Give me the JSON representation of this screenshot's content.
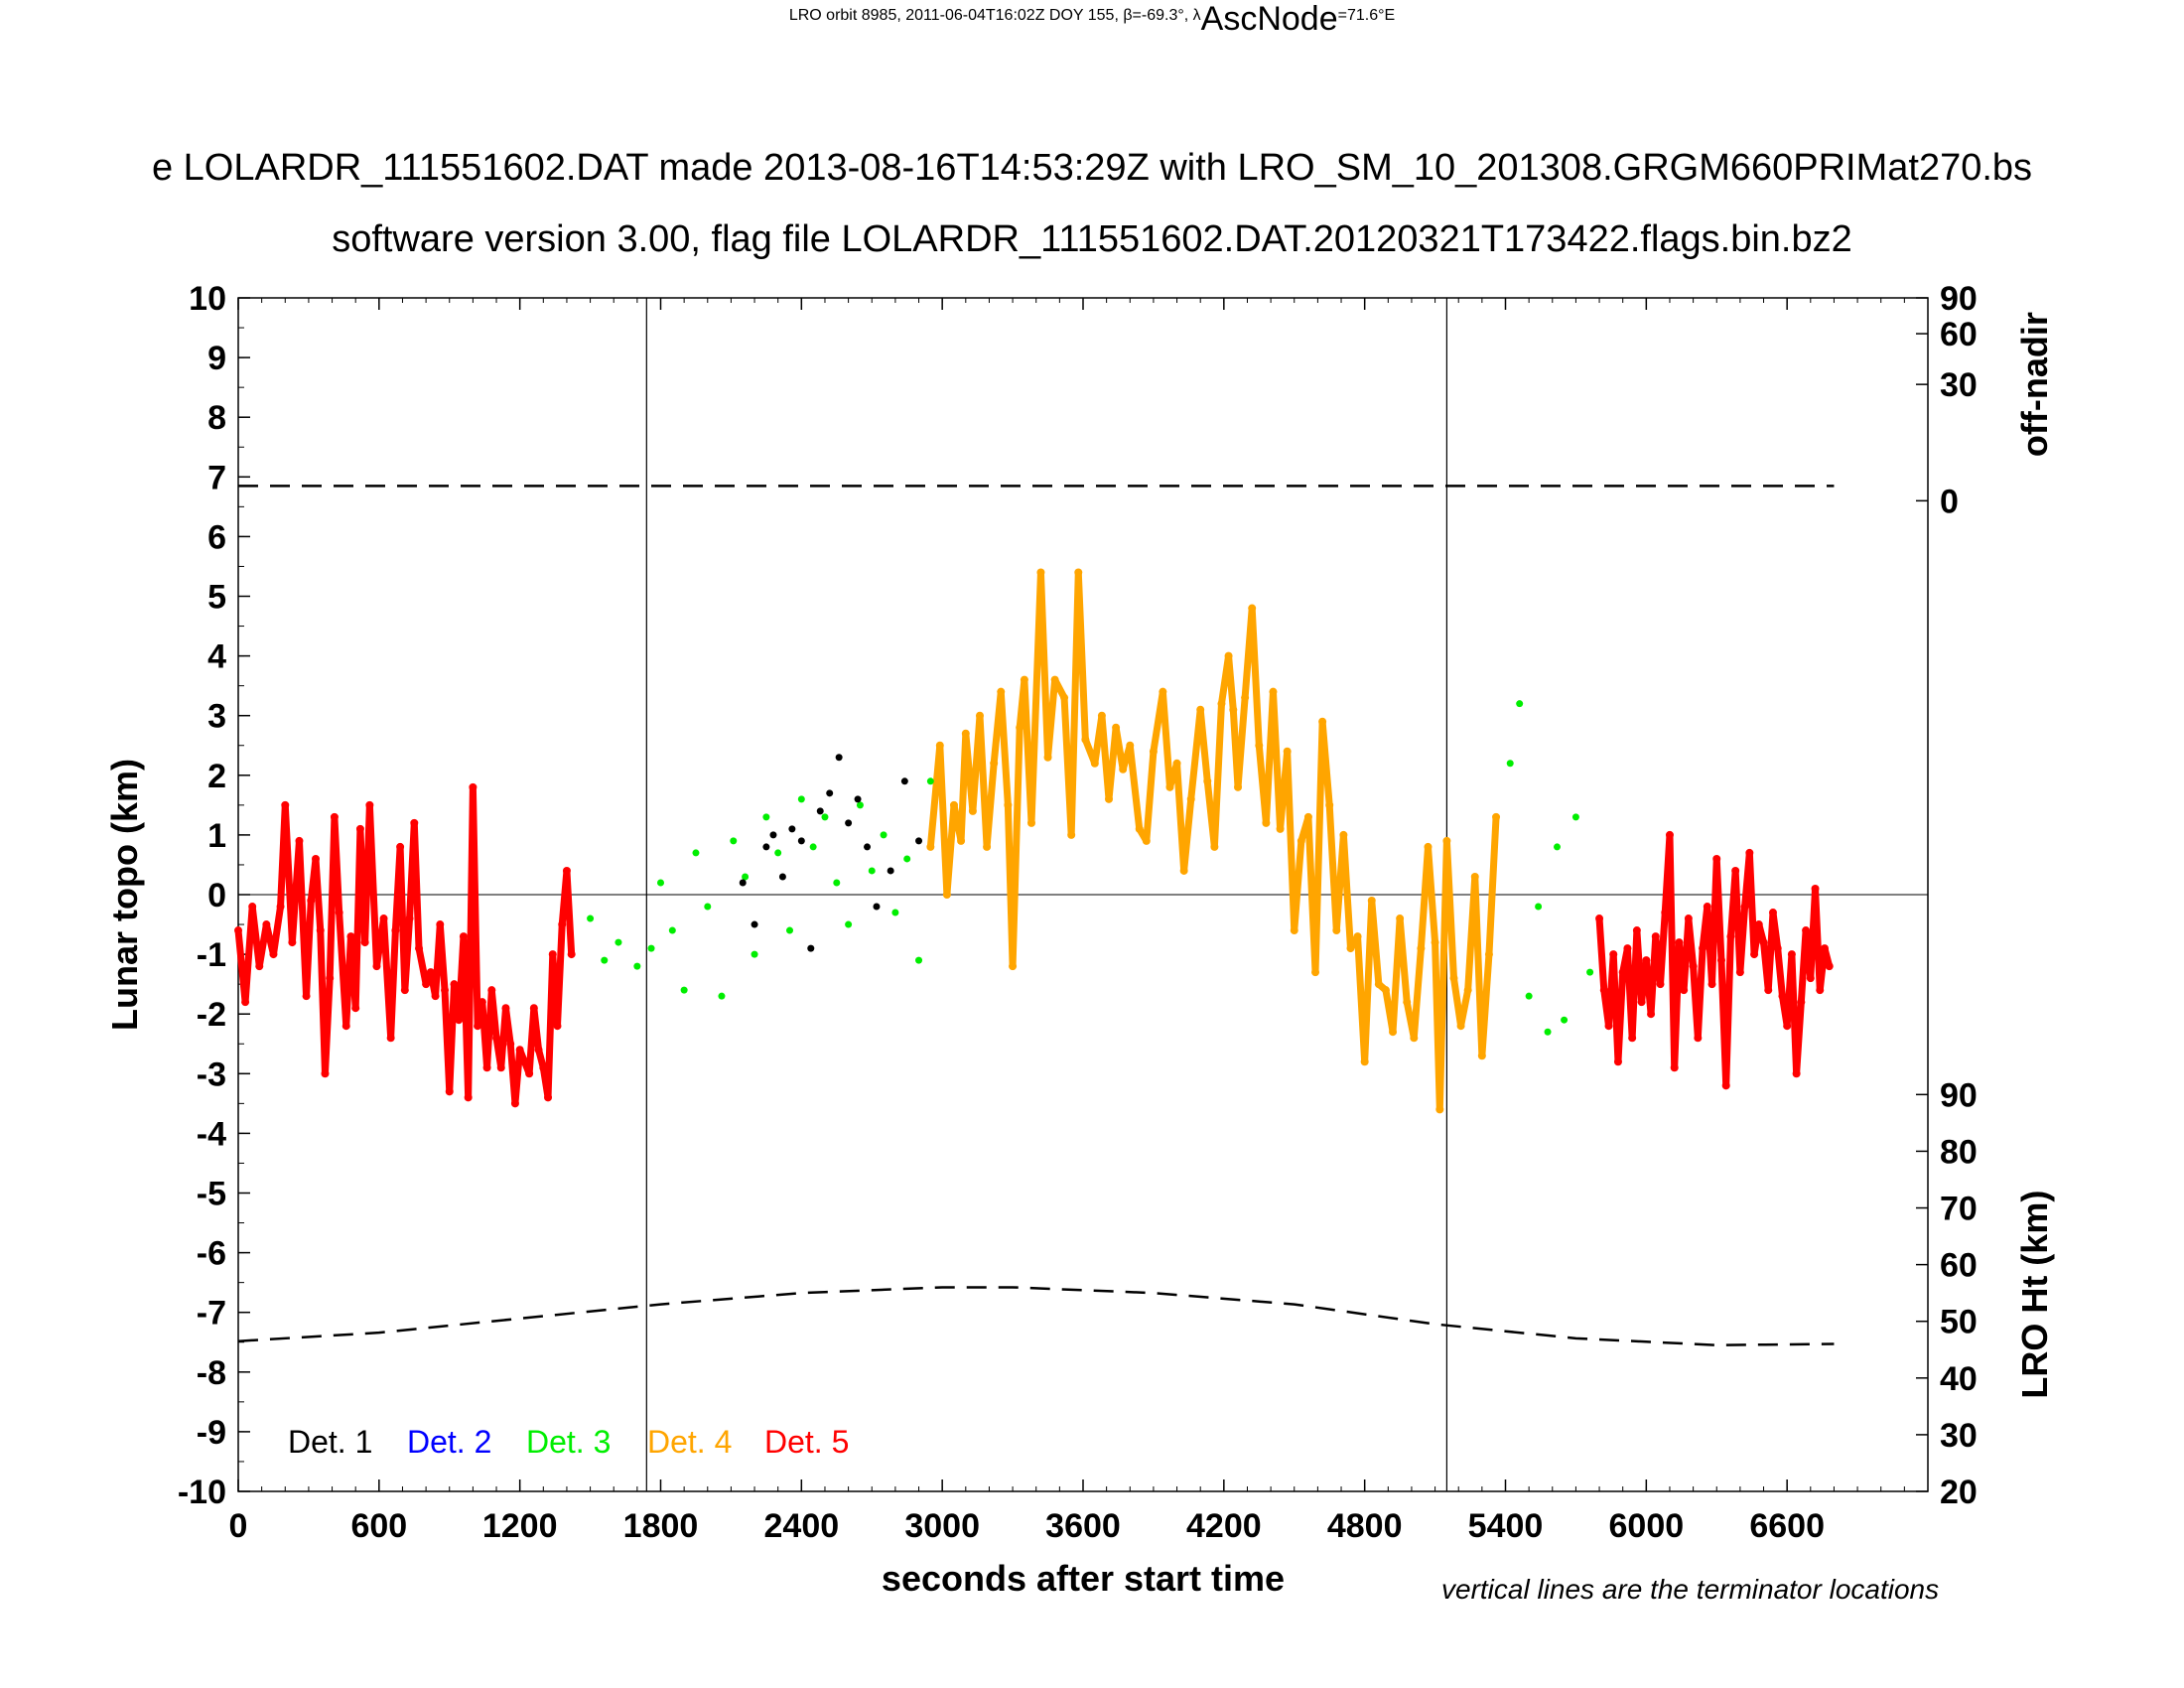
{
  "titles": {
    "line1_pre": "LRO orbit 8985, 2011-06-04T16:02Z DOY 155, β=-69.3°, λ",
    "line1_sub": "AscNode",
    "line1_post": "=71.6°E",
    "line2": "e LOLARDR_111551602.DAT made 2013-08-16T14:53:29Z with LRO_SM_10_201308.GRGM660PRIMat270.bs",
    "line3": "software version 3.00, flag file LOLARDR_111551602.DAT.20120321T173422.flags.bin.bz2"
  },
  "note": "vertical lines are the terminator locations",
  "colors": {
    "det1": "#000000",
    "det2": "#0000ff",
    "det3": "#00ee00",
    "det4": "#ffa500",
    "det5": "#ff0000"
  },
  "chart_data": {
    "type": "scatter",
    "xlabel": "seconds after start time",
    "ylabel": "Lunar topo (km)",
    "y2label_top": "off-nadir",
    "y2label_bottom": "LRO Ht (km)",
    "xlim": [
      0,
      7200
    ],
    "ylim": [
      -10,
      10
    ],
    "x_ticks": [
      "0",
      "600",
      "1200",
      "1800",
      "2400",
      "3000",
      "3600",
      "4200",
      "4800",
      "5400",
      "6000",
      "6600"
    ],
    "y_ticks": [
      "-10",
      "-9",
      "-8",
      "-7",
      "-6",
      "-5",
      "-4",
      "-3",
      "-2",
      "-1",
      "0",
      "1",
      "2",
      "3",
      "4",
      "5",
      "6",
      "7",
      "8",
      "9",
      "10"
    ],
    "offnadir_ticks": [
      [
        "90",
        10
      ],
      [
        "60",
        9.4
      ],
      [
        "30",
        8.55
      ],
      [
        "0",
        6.6
      ]
    ],
    "ht_ticks": [
      [
        "90",
        -3.35
      ],
      [
        "80",
        -4.3
      ],
      [
        "70",
        -5.25
      ],
      [
        "60",
        -6.2
      ],
      [
        "50",
        -7.15
      ],
      [
        "40",
        -8.1
      ],
      [
        "30",
        -9.05
      ],
      [
        "20",
        -10
      ]
    ],
    "terminators": [
      1740,
      5150
    ],
    "offnadir_line": {
      "y": 6.85,
      "x": [
        0,
        6800
      ]
    },
    "lro_height_km": [
      [
        0,
        46.5
      ],
      [
        600,
        48
      ],
      [
        1200,
        50.5
      ],
      [
        1800,
        53
      ],
      [
        2400,
        55
      ],
      [
        3000,
        56
      ],
      [
        3300,
        56
      ],
      [
        3900,
        55
      ],
      [
        4500,
        53
      ],
      [
        5100,
        49.5
      ],
      [
        5700,
        47
      ],
      [
        6300,
        45.8
      ],
      [
        6800,
        46
      ]
    ],
    "legend": [
      "Det. 1",
      "Det. 2",
      "Det. 3",
      "Det. 4",
      "Det. 5"
    ],
    "series": [
      {
        "name": "Det. 5",
        "x": [
          0,
          30,
          60,
          90,
          120,
          150,
          180,
          200,
          230,
          260,
          290,
          310,
          330,
          350,
          370,
          390,
          410,
          430,
          460,
          480,
          500,
          520,
          540,
          560,
          590,
          620,
          650,
          670,
          690,
          710,
          730,
          750,
          770,
          800,
          820,
          840,
          860,
          880,
          900,
          920,
          940,
          960,
          980,
          1000,
          1020,
          1040,
          1060,
          1080,
          1100,
          1120,
          1140,
          1160,
          1180,
          1200,
          1220,
          1240,
          1260,
          1280,
          1300,
          1320,
          1340,
          1360,
          1380,
          1400,
          1420
        ],
        "y": [
          -0.6,
          -1.8,
          -0.2,
          -1.2,
          -0.5,
          -1.0,
          -0.2,
          1.5,
          -0.8,
          0.9,
          -1.7,
          -0.1,
          0.6,
          -0.6,
          -3.0,
          -1.4,
          1.3,
          -0.3,
          -2.2,
          -0.7,
          -1.9,
          1.1,
          -0.8,
          1.5,
          -1.2,
          -0.4,
          -2.4,
          -0.6,
          0.8,
          -1.6,
          -0.4,
          1.2,
          -0.9,
          -1.5,
          -1.3,
          -1.7,
          -0.5,
          -1.6,
          -3.3,
          -1.5,
          -2.1,
          -0.7,
          -3.4,
          1.8,
          -2.2,
          -1.8,
          -2.9,
          -1.6,
          -2.4,
          -2.9,
          -1.9,
          -2.5,
          -3.5,
          -2.6,
          -2.8,
          -3.0,
          -1.9,
          -2.6,
          -2.9,
          -3.4,
          -1.0,
          -2.2,
          -0.5,
          0.4,
          -1.0
        ]
      },
      {
        "name": "Det. 4",
        "x": [
          2950,
          2990,
          3020,
          3050,
          3080,
          3100,
          3130,
          3160,
          3190,
          3220,
          3250,
          3280,
          3300,
          3330,
          3350,
          3380,
          3420,
          3450,
          3480,
          3520,
          3550,
          3580,
          3610,
          3650,
          3680,
          3710,
          3740,
          3770,
          3800,
          3840,
          3870,
          3900,
          3940,
          3970,
          4000,
          4030,
          4060,
          4100,
          4130,
          4160,
          4190,
          4220,
          4240,
          4260,
          4290,
          4320,
          4350,
          4380,
          4410,
          4440,
          4470,
          4500,
          4530,
          4560,
          4590,
          4620,
          4650,
          4680,
          4710,
          4740,
          4770,
          4800,
          4830,
          4860,
          4890,
          4920,
          4950,
          4980,
          5010,
          5040,
          5070,
          5100,
          5120,
          5150,
          5180,
          5210,
          5240,
          5270,
          5300,
          5330,
          5360
        ],
        "y": [
          0.8,
          2.5,
          0.0,
          1.5,
          0.9,
          2.7,
          1.4,
          3.0,
          0.8,
          2.2,
          3.4,
          1.5,
          -1.2,
          2.8,
          3.6,
          1.2,
          5.4,
          2.3,
          3.6,
          3.3,
          1.0,
          5.4,
          2.6,
          2.2,
          3.0,
          1.6,
          2.8,
          2.1,
          2.5,
          1.1,
          0.9,
          2.4,
          3.4,
          1.8,
          2.2,
          0.4,
          1.6,
          3.1,
          1.9,
          0.8,
          3.2,
          4.0,
          3.1,
          1.8,
          3.3,
          4.8,
          2.5,
          1.2,
          3.4,
          1.1,
          2.4,
          -0.6,
          0.9,
          1.3,
          -1.3,
          2.9,
          1.5,
          -0.6,
          1.0,
          -0.9,
          -0.7,
          -2.8,
          -0.1,
          -1.5,
          -1.6,
          -2.3,
          -0.4,
          -1.8,
          -2.4,
          -0.9,
          0.8,
          -0.8,
          -3.6,
          0.9,
          -1.4,
          -2.2,
          -1.6,
          0.3,
          -2.7,
          -1.0,
          1.3
        ]
      },
      {
        "name": "Det. 3",
        "x": [
          1500,
          1560,
          1620,
          1700,
          1760,
          1800,
          1850,
          1900,
          1950,
          2000,
          2060,
          2110,
          2160,
          2200,
          2250,
          2300,
          2350,
          2400,
          2450,
          2500,
          2550,
          2600,
          2650,
          2700,
          2750,
          2800,
          2850,
          2900,
          2950,
          5420,
          5460,
          5500,
          5540,
          5580,
          5620,
          5650,
          5700,
          5760
        ],
        "y": [
          -0.4,
          -1.1,
          -0.8,
          -1.2,
          -0.9,
          0.2,
          -0.6,
          -1.6,
          0.7,
          -0.2,
          -1.7,
          0.9,
          0.3,
          -1.0,
          1.3,
          0.7,
          -0.6,
          1.6,
          0.8,
          1.3,
          0.2,
          -0.5,
          1.5,
          0.4,
          1.0,
          -0.3,
          0.6,
          -1.1,
          1.9,
          2.2,
          3.2,
          -1.7,
          -0.2,
          -2.3,
          0.8,
          -2.1,
          1.3,
          -1.3
        ]
      },
      {
        "name": "Det. 1",
        "x": [
          2150,
          2200,
          2250,
          2280,
          2320,
          2360,
          2400,
          2440,
          2480,
          2520,
          2560,
          2600,
          2640,
          2680,
          2720,
          2780,
          2840,
          2900
        ],
        "y": [
          0.2,
          -0.5,
          0.8,
          1.0,
          0.3,
          1.1,
          0.9,
          -0.9,
          1.4,
          1.7,
          2.3,
          1.2,
          1.6,
          0.8,
          -0.2,
          0.4,
          1.9,
          0.9
        ]
      },
      {
        "name": "Det. 5",
        "x": [
          5800,
          5820,
          5840,
          5860,
          5880,
          5900,
          5920,
          5940,
          5960,
          5980,
          6000,
          6020,
          6040,
          6060,
          6080,
          6100,
          6120,
          6140,
          6160,
          6180,
          6200,
          6220,
          6240,
          6260,
          6280,
          6300,
          6320,
          6340,
          6360,
          6380,
          6400,
          6420,
          6440,
          6460,
          6480,
          6500,
          6520,
          6540,
          6560,
          6580,
          6600,
          6620,
          6640,
          6660,
          6680,
          6700,
          6720,
          6740,
          6760,
          6780
        ],
        "y": [
          -0.4,
          -1.6,
          -2.2,
          -1.0,
          -2.8,
          -1.3,
          -0.9,
          -2.4,
          -0.6,
          -1.8,
          -1.1,
          -2.0,
          -0.7,
          -1.5,
          -0.3,
          1.0,
          -2.9,
          -0.8,
          -1.6,
          -0.4,
          -1.2,
          -2.4,
          -0.9,
          -0.2,
          -1.5,
          0.6,
          -1.1,
          -3.2,
          -0.7,
          0.4,
          -1.3,
          -0.2,
          0.7,
          -1.0,
          -0.5,
          -0.8,
          -1.6,
          -0.3,
          -0.9,
          -1.7,
          -2.2,
          -1.0,
          -3.0,
          -1.8,
          -0.6,
          -1.4,
          0.1,
          -1.6,
          -0.9,
          -1.2
        ]
      }
    ]
  }
}
